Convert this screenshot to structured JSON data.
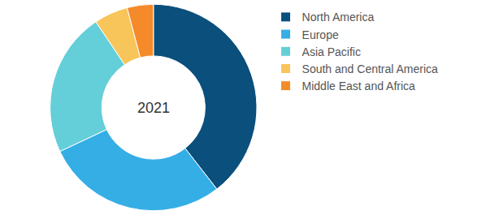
{
  "chart_data": {
    "type": "pie",
    "annotation": "2021",
    "categories": [
      "North America",
      "Europe",
      "Asia Pacific",
      "South and Central America",
      "Middle East and Africa"
    ],
    "values": [
      39.5,
      28.5,
      22.6,
      5.3,
      4.1
    ],
    "colors": [
      "#0b4f7c",
      "#35aee6",
      "#64cfd9",
      "#f8c55b",
      "#f48a2a"
    ],
    "legend": "right",
    "data_labels": false
  }
}
